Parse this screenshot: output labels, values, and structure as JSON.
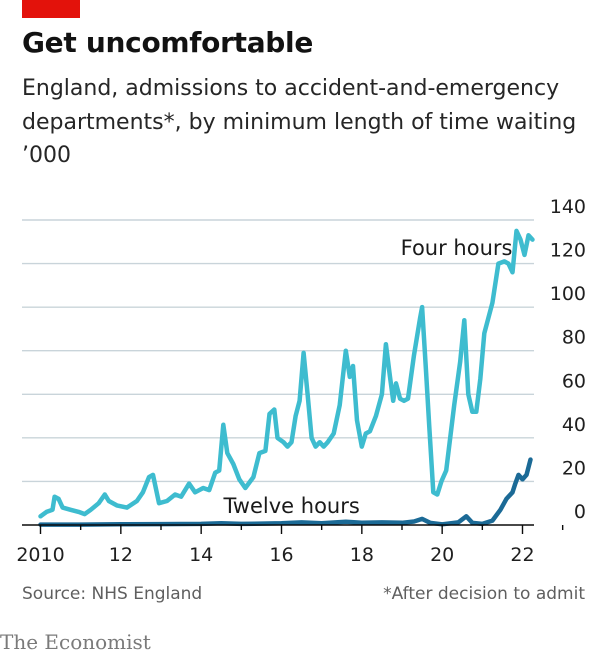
{
  "header": {
    "title": "Get uncomfortable",
    "subtitle": "England, admissions to accident-and-emergency departments*, by minimum length of time waiting",
    "unit": "’000"
  },
  "footer": {
    "source": "Source: NHS England",
    "note": "*After decision to admit",
    "brand": "The Economist"
  },
  "colors": {
    "brand_red": "#e3120b",
    "four_hours": "#3ebccf",
    "twelve_hours": "#1b6a96",
    "gridline": "#c9d4da",
    "axis": "#0b0b0b"
  },
  "chart_data": {
    "type": "line",
    "title": "Get uncomfortable",
    "subtitle": "England, admissions to accident-and-emergency departments*, by minimum length of time waiting",
    "ylabel": "’000",
    "xlabel": "",
    "ylim": [
      0,
      140
    ],
    "yticks": [
      0,
      20,
      40,
      60,
      80,
      100,
      120,
      140
    ],
    "xlim": [
      2010,
      2023
    ],
    "xticks": [
      2010,
      2012,
      2014,
      2016,
      2018,
      2020,
      2022
    ],
    "xtick_labels": [
      "2010",
      "12",
      "14",
      "16",
      "18",
      "20",
      "22"
    ],
    "grid": true,
    "y_axis_side": "right",
    "series": [
      {
        "name": "Four hours",
        "color": "#3ebccf",
        "points": [
          [
            2010.0,
            4
          ],
          [
            2010.15,
            6
          ],
          [
            2010.3,
            7
          ],
          [
            2010.35,
            13
          ],
          [
            2010.45,
            12
          ],
          [
            2010.55,
            8
          ],
          [
            2010.75,
            7
          ],
          [
            2010.95,
            6
          ],
          [
            2011.1,
            5
          ],
          [
            2011.25,
            7
          ],
          [
            2011.45,
            10
          ],
          [
            2011.6,
            14
          ],
          [
            2011.7,
            11
          ],
          [
            2011.9,
            9
          ],
          [
            2012.15,
            8
          ],
          [
            2012.4,
            11
          ],
          [
            2012.55,
            15
          ],
          [
            2012.7,
            22
          ],
          [
            2012.8,
            23
          ],
          [
            2012.95,
            10
          ],
          [
            2013.15,
            11
          ],
          [
            2013.35,
            14
          ],
          [
            2013.5,
            13
          ],
          [
            2013.7,
            19
          ],
          [
            2013.85,
            15
          ],
          [
            2014.05,
            17
          ],
          [
            2014.2,
            16
          ],
          [
            2014.35,
            24
          ],
          [
            2014.45,
            25
          ],
          [
            2014.55,
            46
          ],
          [
            2014.65,
            33
          ],
          [
            2014.8,
            28
          ],
          [
            2014.95,
            21
          ],
          [
            2015.1,
            17
          ],
          [
            2015.3,
            22
          ],
          [
            2015.45,
            33
          ],
          [
            2015.6,
            34
          ],
          [
            2015.7,
            51
          ],
          [
            2015.82,
            53
          ],
          [
            2015.9,
            40
          ],
          [
            2016.05,
            38
          ],
          [
            2016.15,
            36
          ],
          [
            2016.25,
            38
          ],
          [
            2016.35,
            50
          ],
          [
            2016.45,
            57
          ],
          [
            2016.55,
            79
          ],
          [
            2016.65,
            60
          ],
          [
            2016.75,
            40
          ],
          [
            2016.85,
            36
          ],
          [
            2016.95,
            38
          ],
          [
            2017.05,
            36
          ],
          [
            2017.15,
            38
          ],
          [
            2017.3,
            42
          ],
          [
            2017.45,
            55
          ],
          [
            2017.6,
            80
          ],
          [
            2017.7,
            68
          ],
          [
            2017.78,
            73
          ],
          [
            2017.88,
            48
          ],
          [
            2018.0,
            36
          ],
          [
            2018.1,
            42
          ],
          [
            2018.2,
            43
          ],
          [
            2018.35,
            50
          ],
          [
            2018.5,
            60
          ],
          [
            2018.6,
            83
          ],
          [
            2018.7,
            68
          ],
          [
            2018.78,
            57
          ],
          [
            2018.85,
            65
          ],
          [
            2018.95,
            58
          ],
          [
            2019.05,
            57
          ],
          [
            2019.15,
            58
          ],
          [
            2019.3,
            78
          ],
          [
            2019.45,
            95
          ],
          [
            2019.5,
            100
          ],
          [
            2019.6,
            70
          ],
          [
            2019.68,
            45
          ],
          [
            2019.78,
            15
          ],
          [
            2019.88,
            14
          ],
          [
            2019.98,
            20
          ],
          [
            2020.1,
            25
          ],
          [
            2020.3,
            55
          ],
          [
            2020.45,
            75
          ],
          [
            2020.55,
            94
          ],
          [
            2020.65,
            60
          ],
          [
            2020.75,
            52
          ],
          [
            2020.85,
            52
          ],
          [
            2020.95,
            67
          ],
          [
            2021.05,
            88
          ],
          [
            2021.25,
            102
          ],
          [
            2021.4,
            120
          ],
          [
            2021.55,
            121
          ],
          [
            2021.65,
            120
          ],
          [
            2021.75,
            116
          ],
          [
            2021.85,
            135
          ],
          [
            2021.95,
            131
          ],
          [
            2022.05,
            124
          ],
          [
            2022.15,
            133
          ],
          [
            2022.25,
            131
          ]
        ]
      },
      {
        "name": "Twelve hours",
        "color": "#1b6a96",
        "points": [
          [
            2010.0,
            0.2
          ],
          [
            2011.0,
            0.2
          ],
          [
            2012.0,
            0.3
          ],
          [
            2013.0,
            0.4
          ],
          [
            2014.0,
            0.5
          ],
          [
            2014.5,
            0.8
          ],
          [
            2015.0,
            0.5
          ],
          [
            2016.0,
            0.8
          ],
          [
            2016.5,
            1.2
          ],
          [
            2017.0,
            0.8
          ],
          [
            2017.6,
            1.5
          ],
          [
            2018.0,
            1.0
          ],
          [
            2018.5,
            1.2
          ],
          [
            2019.0,
            1.0
          ],
          [
            2019.3,
            1.6
          ],
          [
            2019.5,
            2.8
          ],
          [
            2019.7,
            1.0
          ],
          [
            2020.0,
            0.3
          ],
          [
            2020.4,
            1.2
          ],
          [
            2020.6,
            4.0
          ],
          [
            2020.75,
            1.0
          ],
          [
            2021.0,
            0.5
          ],
          [
            2021.25,
            2.0
          ],
          [
            2021.45,
            7.0
          ],
          [
            2021.6,
            12.0
          ],
          [
            2021.75,
            15.0
          ],
          [
            2021.82,
            19.0
          ],
          [
            2021.9,
            23.0
          ],
          [
            2022.0,
            21.0
          ],
          [
            2022.1,
            23.0
          ],
          [
            2022.2,
            30.0
          ]
        ]
      }
    ],
    "annotations": [
      {
        "text": "Four hours",
        "series": "Four hours"
      },
      {
        "text": "Twelve hours",
        "series": "Twelve hours"
      }
    ]
  }
}
